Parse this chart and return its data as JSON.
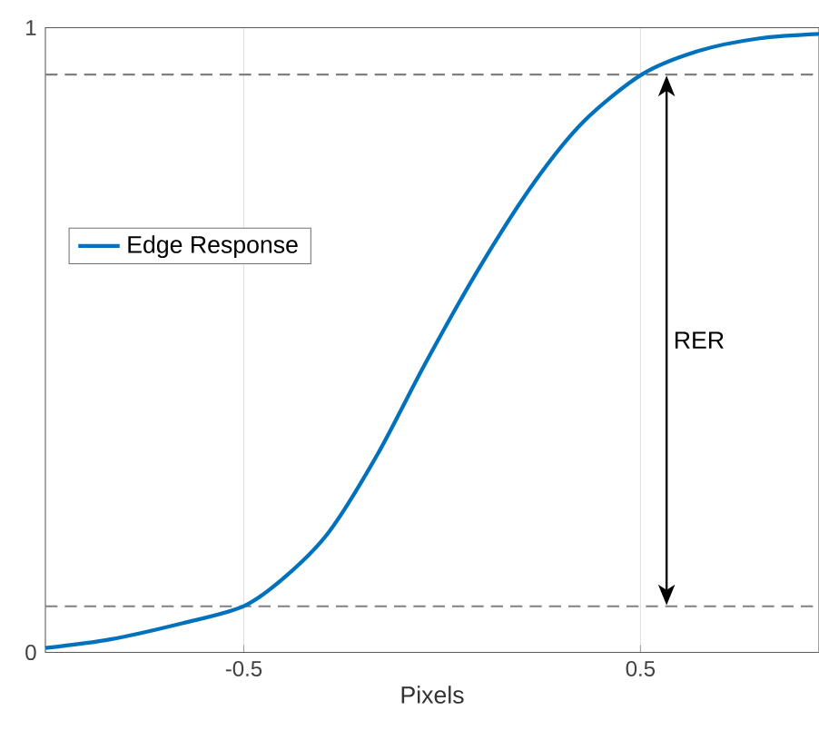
{
  "chart_data": {
    "type": "line",
    "xlabel": "Pixels",
    "x": [
      -1.0,
      -0.836,
      -0.653,
      -0.5,
      -0.392,
      -0.285,
      -0.162,
      -0.042,
      0.095,
      0.234,
      0.357,
      0.503,
      0.647,
      0.8,
      0.95
    ],
    "series": [
      {
        "name": "Edge Response",
        "color": "#0072bd",
        "values": [
          0.007,
          0.021,
          0.047,
          0.074,
          0.123,
          0.193,
          0.318,
          0.463,
          0.617,
          0.754,
          0.85,
          0.925,
          0.963,
          0.983,
          0.99
        ]
      }
    ],
    "xlim": [
      -1.0,
      0.95
    ],
    "ylim": [
      0,
      1
    ],
    "xticks": [
      -0.5,
      0.5
    ],
    "yticks": [
      0,
      1
    ],
    "grid": "x",
    "legend": "left",
    "marker": "none",
    "line_style": "solid",
    "ref_lines": [
      {
        "axis": "y",
        "value": 0.925,
        "color": "#808080",
        "line_style": "dashed"
      },
      {
        "axis": "y",
        "value": 0.074,
        "color": "#808080",
        "line_style": "dashed"
      }
    ],
    "annotations": [
      "RER"
    ]
  }
}
